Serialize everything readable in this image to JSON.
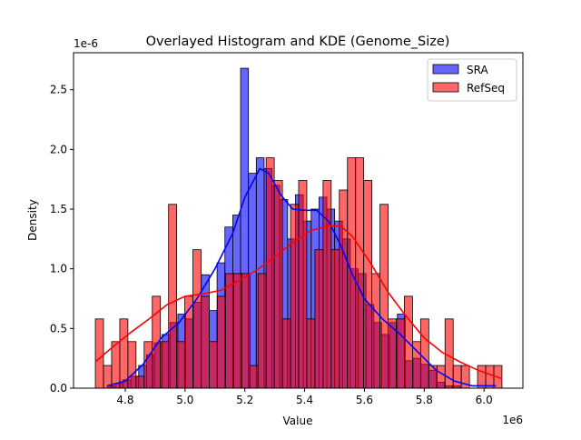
{
  "chart_data": {
    "type": "bar",
    "title": "Overlayed Histogram and KDE (Genome_Size)",
    "xlabel": "Value",
    "ylabel": "Density",
    "x_offset_label": "1e6",
    "y_offset_label": "1e-6",
    "xlim": [
      4.627,
      6.13
    ],
    "ylim": [
      0,
      2.81
    ],
    "x_ticks": [
      4.8,
      5.0,
      5.2,
      5.4,
      5.6,
      5.8,
      6.0
    ],
    "x_tick_labels": [
      "4.8",
      "5.0",
      "5.2",
      "5.4",
      "5.6",
      "5.8",
      "6.0"
    ],
    "y_ticks": [
      0,
      0.5,
      1.0,
      1.5,
      2.0,
      2.5
    ],
    "y_tick_labels": [
      "0.0",
      "0.5",
      "1.0",
      "1.5",
      "2.0",
      "2.5"
    ],
    "grid": false,
    "legend_placement": "top-right",
    "series": [
      {
        "name": "SRA",
        "color": "#0000ff",
        "bin_start": 4.74,
        "bin_end": 5.92,
        "values": [
          0.02,
          0.04,
          0.07,
          0.1,
          0.19,
          0.28,
          0.38,
          0.45,
          0.55,
          0.62,
          0.58,
          0.72,
          0.95,
          0.65,
          1.05,
          1.35,
          1.45,
          2.68,
          1.8,
          1.93,
          1.84,
          1.7,
          1.58,
          1.25,
          1.62,
          1.4,
          1.5,
          1.6,
          1.5,
          1.4,
          1.25,
          1.0,
          0.96,
          0.7,
          0.55,
          0.45,
          0.55,
          0.62,
          0.23,
          0.25,
          0.2,
          0.15,
          0.05,
          0.02,
          0.02
        ],
        "kde": {
          "x": [
            4.74,
            4.8,
            4.86,
            4.92,
            4.98,
            5.04,
            5.1,
            5.16,
            5.2,
            5.25,
            5.28,
            5.32,
            5.36,
            5.4,
            5.44,
            5.48,
            5.52,
            5.56,
            5.6,
            5.66,
            5.72,
            5.78,
            5.84,
            5.9,
            5.96,
            6.04
          ],
          "y": [
            0.02,
            0.06,
            0.2,
            0.42,
            0.55,
            0.75,
            1.0,
            1.3,
            1.6,
            1.84,
            1.8,
            1.62,
            1.5,
            1.49,
            1.49,
            1.4,
            1.2,
            0.95,
            0.75,
            0.58,
            0.45,
            0.3,
            0.15,
            0.06,
            0.02,
            0.02
          ]
        }
      },
      {
        "name": "RefSeq",
        "color": "#ff0000",
        "bin_start": 4.7,
        "bin_end": 6.06,
        "values": [
          0.58,
          0.19,
          0.39,
          0.58,
          0.39,
          0.1,
          0.39,
          0.77,
          0.39,
          1.54,
          0.39,
          0.77,
          1.16,
          0.77,
          0.39,
          0.77,
          0.96,
          0.96,
          0.96,
          0.19,
          0.96,
          1.93,
          1.74,
          0.58,
          1.54,
          1.74,
          0.58,
          1.16,
          1.74,
          1.16,
          1.66,
          1.93,
          1.93,
          1.74,
          0.96,
          1.54,
          0.58,
          0.58,
          0.77,
          0.39,
          0.58,
          0.19,
          0.19,
          0.58,
          0.19,
          0.19,
          0.0,
          0.19,
          0.19,
          0.19
        ],
        "kde": {
          "x": [
            4.7,
            4.76,
            4.82,
            4.88,
            4.94,
            5.0,
            5.06,
            5.12,
            5.18,
            5.24,
            5.3,
            5.36,
            5.42,
            5.48,
            5.52,
            5.56,
            5.62,
            5.68,
            5.74,
            5.8,
            5.86,
            5.92,
            5.98,
            6.06
          ],
          "y": [
            0.22,
            0.35,
            0.47,
            0.58,
            0.7,
            0.77,
            0.79,
            0.82,
            0.9,
            0.99,
            1.1,
            1.22,
            1.32,
            1.36,
            1.36,
            1.27,
            1.05,
            0.8,
            0.6,
            0.42,
            0.3,
            0.22,
            0.15,
            0.08
          ]
        }
      }
    ]
  }
}
